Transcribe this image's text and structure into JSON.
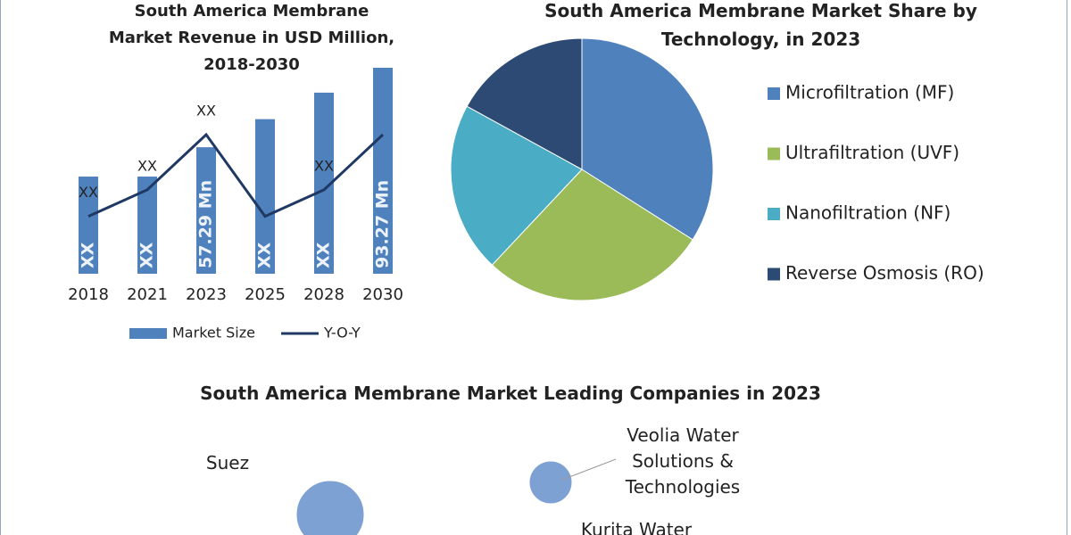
{
  "chart_data": [
    {
      "type": "bar-line",
      "title": "South America Membrane Market Revenue in USD Million, 2018-2030",
      "categories": [
        "2018",
        "2021",
        "2023",
        "2025",
        "2028",
        "2030"
      ],
      "series": [
        {
          "name": "Market Size",
          "color": "#4f81bd",
          "values": [
            44,
            44,
            57.29,
            70,
            82,
            93.27
          ],
          "value_labels": [
            "XX",
            "XX",
            "57.29 Mn",
            "XX",
            "XX",
            "93.27 Mn"
          ]
        },
        {
          "name": "Y-O-Y",
          "color": "#1f3864",
          "values": [
            26,
            38,
            63,
            26,
            38,
            63
          ],
          "value_labels": [
            "XX",
            "XX",
            "XX",
            null,
            "XX",
            null
          ]
        }
      ]
    },
    {
      "type": "pie",
      "title": "South America Membrane Market Share by Technology, in 2023",
      "categories": [
        "Microfiltration (MF)",
        "Ultrafiltration (UVF)",
        "Nanofiltration (NF)",
        "Reverse Osmosis (RO)"
      ],
      "values": [
        34,
        28,
        21,
        17
      ],
      "colors": [
        "#4f81bd",
        "#9bbb59",
        "#4bacc6",
        "#2c4a74"
      ]
    },
    {
      "type": "bubble",
      "title": "South America Membrane Market Leading Companies in 2023",
      "categories": [
        "Suez",
        "Veolia Water Solutions & Technologies",
        "Kurita Water"
      ],
      "sizes": [
        38,
        24,
        null
      ],
      "color": "#7ea1d3"
    }
  ]
}
